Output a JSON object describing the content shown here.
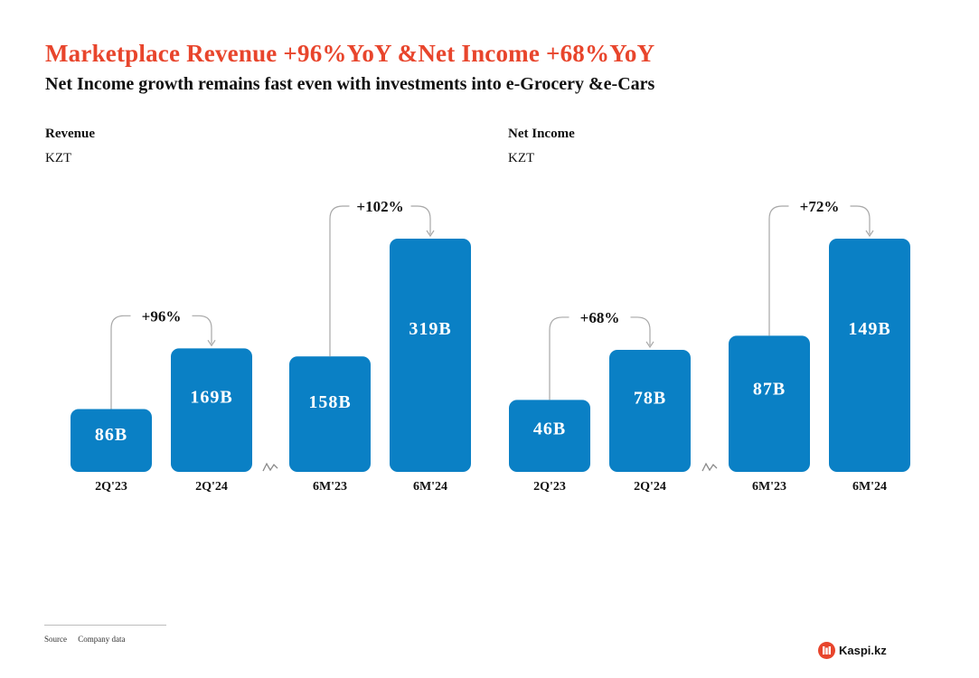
{
  "header": {
    "title": "Marketplace Revenue +96%YoY &Net Income +68%YoY",
    "subtitle": "Net Income growth remains fast even with investments into e-Grocery &e-Cars"
  },
  "footer": {
    "source_label": "Source",
    "source_value": "Company data"
  },
  "logo": {
    "text": "Kaspi.kz"
  },
  "colors": {
    "bar": "#0a80c5",
    "title": "#e8452c",
    "connector": "#a8a8a8",
    "brand": "#e8452c"
  },
  "chart_data": [
    {
      "type": "bar",
      "title": "Revenue",
      "unit": "KZT",
      "categories": [
        "2Q'23",
        "2Q'24",
        "6M'23",
        "6M'24"
      ],
      "values": [
        86,
        169,
        158,
        319
      ],
      "value_labels": [
        "86B",
        "169B",
        "158B",
        "319B"
      ],
      "axis_break_between": [
        1,
        2
      ],
      "growth_annotations": [
        {
          "from": 0,
          "to": 1,
          "label": "+96%"
        },
        {
          "from": 2,
          "to": 3,
          "label": "+102%"
        }
      ]
    },
    {
      "type": "bar",
      "title": "Net Income",
      "unit": "KZT",
      "categories": [
        "2Q'23",
        "2Q'24",
        "6M'23",
        "6M'24"
      ],
      "values": [
        46,
        78,
        87,
        149
      ],
      "value_labels": [
        "46B",
        "78B",
        "87B",
        "149B"
      ],
      "axis_break_between": [
        1,
        2
      ],
      "growth_annotations": [
        {
          "from": 0,
          "to": 1,
          "label": "+68%"
        },
        {
          "from": 2,
          "to": 3,
          "label": "+72%"
        }
      ]
    }
  ]
}
